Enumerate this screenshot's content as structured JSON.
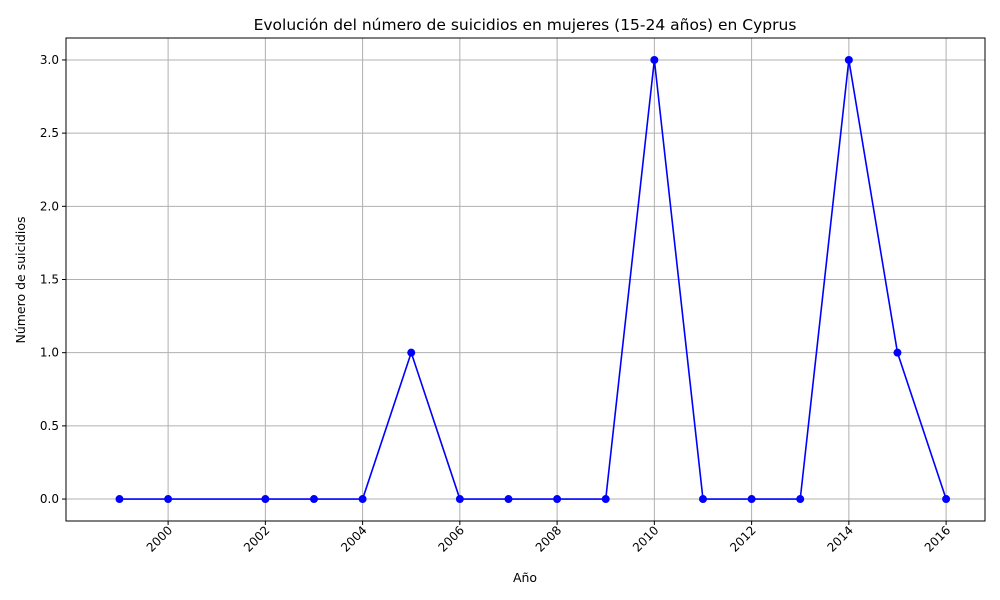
{
  "chart_data": {
    "type": "line",
    "title": "Evolución del número de suicidios en mujeres (15-24 años) en Cyprus",
    "xlabel": "Año",
    "ylabel": "Número de suicidios",
    "xlim": [
      1997.9,
      2016.8
    ],
    "ylim": [
      -0.15,
      3.15
    ],
    "xticks": [
      2000,
      2002,
      2004,
      2006,
      2008,
      2010,
      2012,
      2014,
      2016
    ],
    "xtick_labels": [
      "2000",
      "2002",
      "2004",
      "2006",
      "2008",
      "2010",
      "2012",
      "2014",
      "2016"
    ],
    "xtick_rotation": 45,
    "yticks": [
      0.0,
      0.5,
      1.0,
      1.5,
      2.0,
      2.5,
      3.0
    ],
    "ytick_labels": [
      "0.0",
      "0.5",
      "1.0",
      "1.5",
      "2.0",
      "2.5",
      "3.0"
    ],
    "grid": true,
    "series": [
      {
        "color": "#0000ff",
        "marker": "circle",
        "x": [
          1999,
          2000,
          2002,
          2003,
          2004,
          2005,
          2006,
          2007,
          2008,
          2009,
          2010,
          2011,
          2012,
          2013,
          2014,
          2015,
          2016
        ],
        "y": [
          0,
          0,
          0,
          0,
          0,
          1,
          0,
          0,
          0,
          0,
          3,
          0,
          0,
          0,
          3,
          1,
          0
        ]
      }
    ]
  }
}
